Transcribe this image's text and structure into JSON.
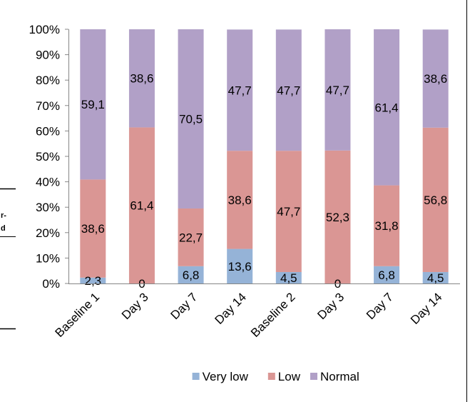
{
  "chart_data": {
    "type": "bar",
    "stacked": true,
    "percent": true,
    "categories": [
      "Baseline 1",
      "Day 3",
      "Day 7",
      "Day 14",
      "Baseline 2",
      "Day 3",
      "Day 7",
      "Day 14"
    ],
    "series": [
      {
        "name": "Very low",
        "color": "#95B3D7",
        "values": [
          2.3,
          0,
          6.8,
          13.6,
          4.5,
          0,
          6.8,
          4.5
        ],
        "labels": [
          "2,3",
          "0",
          "6,8",
          "13,6",
          "4,5",
          "0",
          "6,8",
          "4,5"
        ]
      },
      {
        "name": "Low",
        "color": "#DA9694",
        "values": [
          38.6,
          61.4,
          22.7,
          38.6,
          47.7,
          52.3,
          31.8,
          56.8
        ],
        "labels": [
          "38,6",
          "61,4",
          "22,7",
          "38,6",
          "47,7",
          "52,3",
          "31,8",
          "56,8"
        ]
      },
      {
        "name": "Normal",
        "color": "#B1A0C7",
        "values": [
          59.1,
          38.6,
          70.5,
          47.7,
          47.7,
          47.7,
          61.4,
          38.6
        ],
        "labels": [
          "59,1",
          "38,6",
          "70,5",
          "47,7",
          "47,7",
          "47,7",
          "61,4",
          "38,6"
        ]
      }
    ],
    "yticks": [
      "0%",
      "10%",
      "20%",
      "30%",
      "40%",
      "50%",
      "60%",
      "70%",
      "80%",
      "90%",
      "100%"
    ],
    "ylim": [
      0,
      100
    ],
    "grid": false,
    "legend_position": "bottom",
    "title": "",
    "xlabel": "",
    "ylabel": ""
  },
  "fragments": {
    "left_text_1": "r-",
    "left_text_2": "d"
  }
}
